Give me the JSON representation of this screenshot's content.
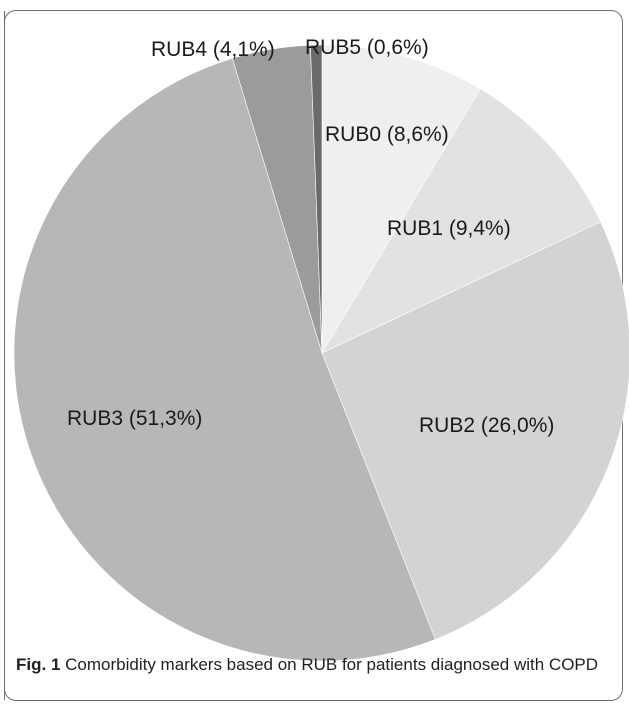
{
  "chart_data": {
    "type": "pie",
    "slices": [
      {
        "label": "RUB0 (8,6%)",
        "value": 8.6,
        "color": "#efefef"
      },
      {
        "label": "RUB1 (9,4%)",
        "value": 9.4,
        "color": "#e2e2e2"
      },
      {
        "label": "RUB2 (26,0%)",
        "value": 26.0,
        "color": "#d3d3d3"
      },
      {
        "label": "RUB3 (51,3%)",
        "value": 51.3,
        "color": "#b7b7b7"
      },
      {
        "label": "RUB4 (4,1%)",
        "value": 4.1,
        "color": "#9b9b9b"
      },
      {
        "label": "RUB5 (0,6%)",
        "value": 0.6,
        "color": "#6a6a6a"
      }
    ],
    "start": "top",
    "direction": "clockwise"
  },
  "caption": {
    "figure_label": "Fig. 1",
    "text": "Comorbidity markers based on RUB for patients diagnosed with COPD"
  }
}
